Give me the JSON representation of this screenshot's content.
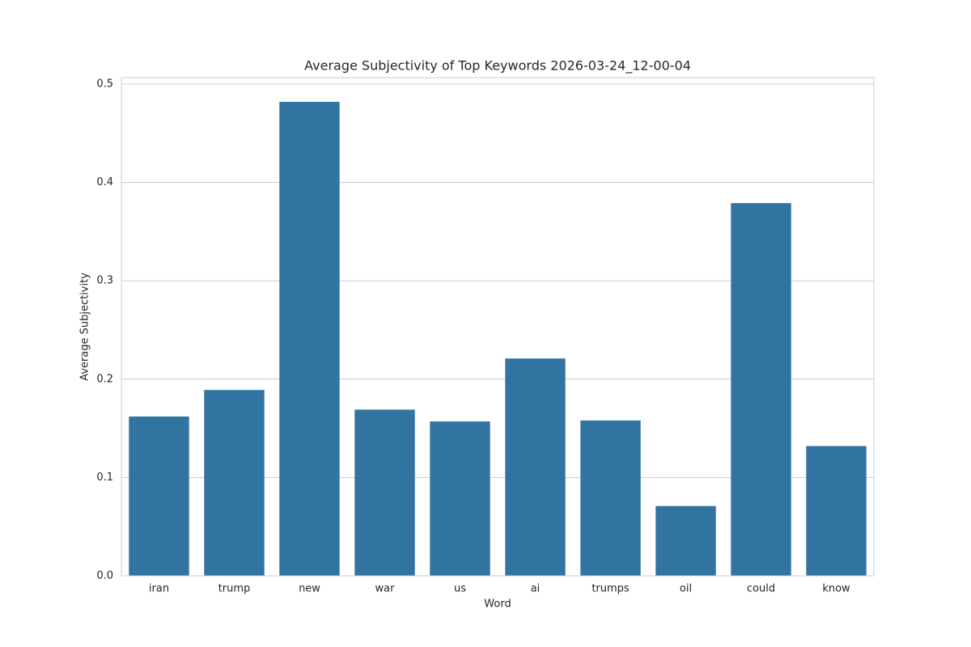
{
  "chart_data": {
    "type": "bar",
    "title": "Average Subjectivity of Top Keywords 2026-03-24_12-00-04",
    "x_label": "Word",
    "y_label": "Average Subjectivity",
    "categories": [
      "iran",
      "trump",
      "new",
      "war",
      "us",
      "ai",
      "trumps",
      "oil",
      "could",
      "know"
    ],
    "values": [
      0.162,
      0.189,
      0.482,
      0.169,
      0.157,
      0.221,
      0.158,
      0.071,
      0.379,
      0.132
    ],
    "color": "#3274a1",
    "ylim": [
      0,
      0.5066
    ],
    "yticks": [
      {
        "value": 0,
        "label": "0.0"
      },
      0.1,
      0.2,
      0.3,
      0.4,
      0.5
    ],
    "grid": true
  }
}
